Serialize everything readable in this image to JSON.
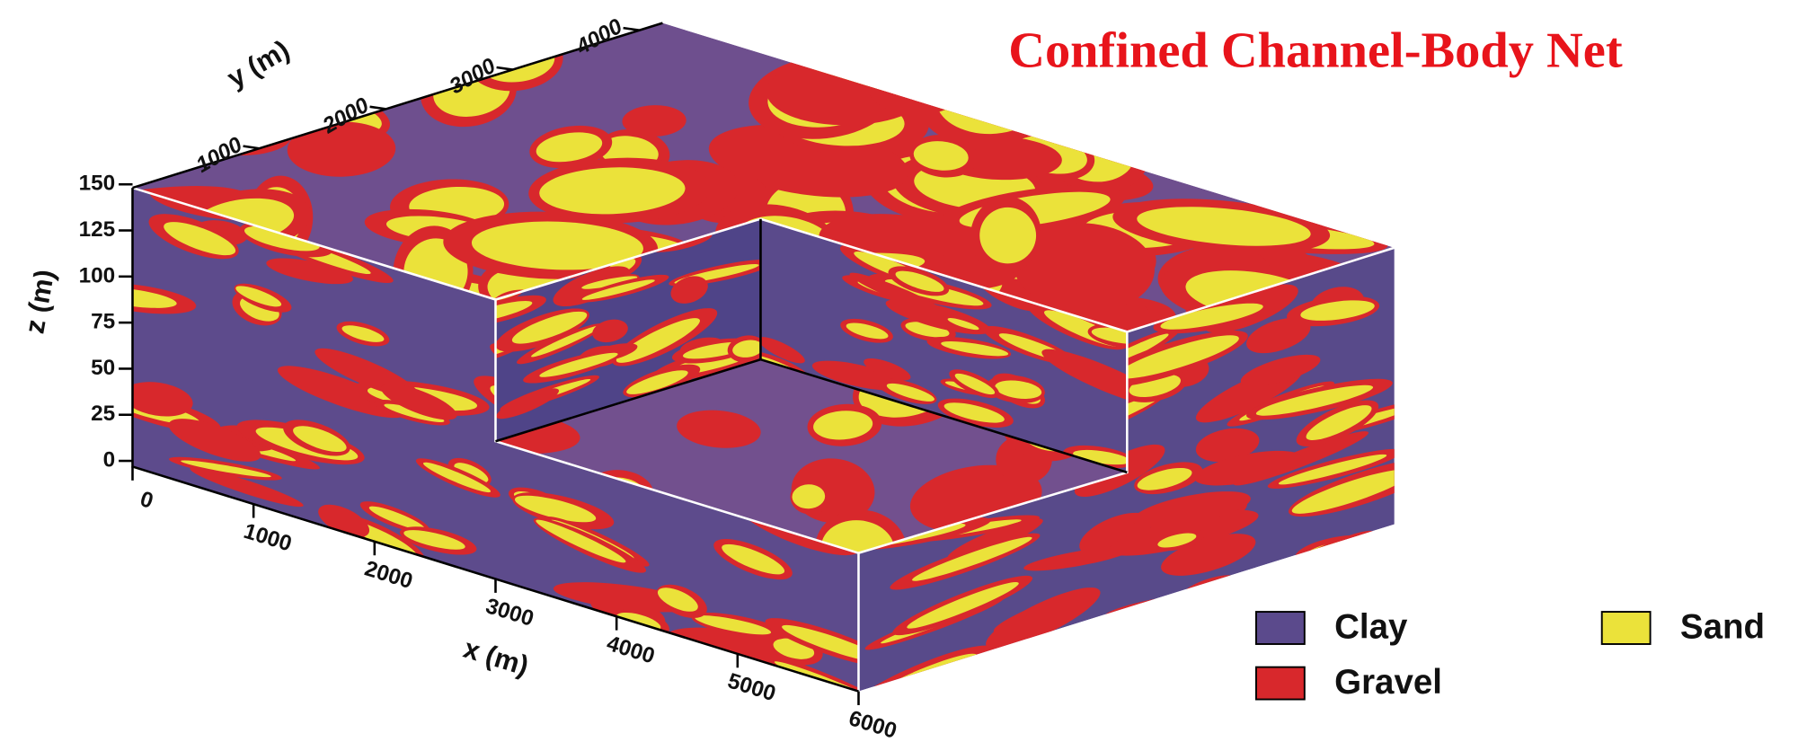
{
  "title": "Confined Channel-Body Net",
  "axes": {
    "x": {
      "label": "x (m)",
      "ticks": [
        "0",
        "1000",
        "2000",
        "3000",
        "4000",
        "5000",
        "6000"
      ]
    },
    "y": {
      "label": "y (m)",
      "ticks": [
        "1000",
        "2000",
        "3000",
        "4000"
      ]
    },
    "z": {
      "label": "z (m)",
      "ticks": [
        "0",
        "25",
        "50",
        "75",
        "100",
        "125",
        "150"
      ]
    }
  },
  "legend": [
    {
      "label": "Clay",
      "color": "#5b4a8c"
    },
    {
      "label": "Sand",
      "color": "#ebe23a"
    },
    {
      "label": "Gravel",
      "color": "#d8282c"
    }
  ]
}
